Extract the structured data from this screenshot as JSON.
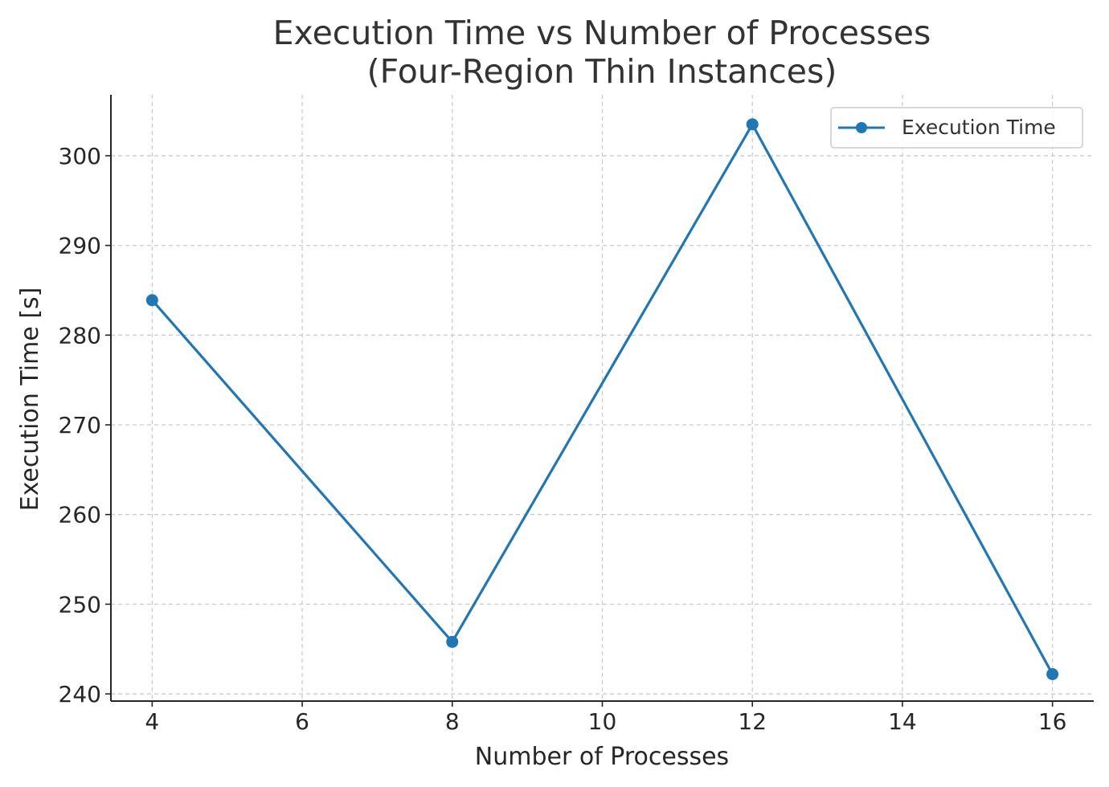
{
  "chart_data": {
    "type": "line",
    "title_line1": "Execution Time vs Number of Processes",
    "title_line2": "(Four-Region Thin Instances)",
    "xlabel": "Number of Processes",
    "ylabel": "Execution Time [s]",
    "x_ticks": [
      4,
      6,
      8,
      10,
      12,
      14,
      16
    ],
    "y_ticks": [
      240,
      250,
      260,
      270,
      280,
      290,
      300
    ],
    "xlim": [
      3.45,
      16.55
    ],
    "ylim": [
      239.2,
      306.8
    ],
    "grid": true,
    "legend_placement": "top-right",
    "series": [
      {
        "name": "Execution Time",
        "color": "#1f77b4",
        "marker": "circle",
        "x": [
          4,
          8,
          12,
          16
        ],
        "y": [
          283.9,
          245.8,
          303.5,
          242.2
        ]
      }
    ]
  }
}
